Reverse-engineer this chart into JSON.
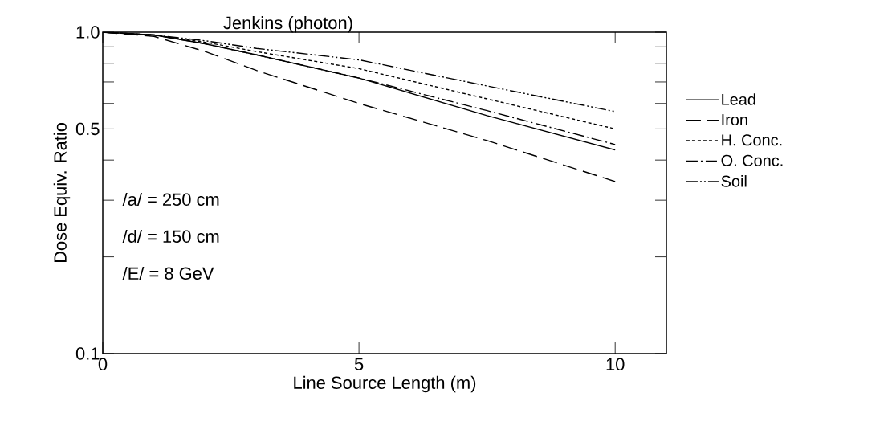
{
  "chart_data": {
    "type": "line",
    "title": "Jenkins  (photon)",
    "xlabel": "Line Source Length (m)",
    "ylabel": "Dose Equiv. Ratio",
    "log": "y",
    "legend": "right",
    "grid": false,
    "marker": "none",
    "x": [
      0,
      1,
      2,
      3,
      5,
      7.5,
      10
    ],
    "xlim": [
      0,
      11
    ],
    "xticks": [
      0,
      5,
      10
    ],
    "ylim": [
      0.1,
      1.0
    ],
    "yticks": [
      0.1,
      {
        "value": 0.2,
        "label": null
      },
      {
        "value": 0.3,
        "label": null
      },
      {
        "value": 0.4,
        "label": null
      },
      0.5,
      {
        "value": 0.6,
        "label": null
      },
      {
        "value": 0.7,
        "label": null
      },
      {
        "value": 0.8,
        "label": null
      },
      {
        "value": 0.9,
        "label": null
      },
      {
        "value": 1,
        "label": "1.0"
      }
    ],
    "series": [
      {
        "name": "Lead",
        "color": "#000000",
        "line_style": "solid",
        "values": [
          1.0,
          0.98,
          0.92,
          0.85,
          0.72,
          0.55,
          0.43
        ]
      },
      {
        "name": "Iron",
        "color": "#000000",
        "line_style": "longdashed",
        "values": [
          1.0,
          0.97,
          0.87,
          0.76,
          0.6,
          0.46,
          0.343
        ]
      },
      {
        "name": "H. Conc.",
        "color": "#000000",
        "line_style": "dashed",
        "values": [
          1.0,
          0.98,
          0.93,
          0.87,
          0.77,
          0.62,
          0.5
        ]
      },
      {
        "name": "O. Conc.",
        "color": "#000000",
        "line_style": "dashdot",
        "values": [
          1.0,
          0.98,
          0.92,
          0.85,
          0.72,
          0.57,
          0.447
        ]
      },
      {
        "name": "Soil",
        "color": "#000000",
        "line_style": "dashdotdot",
        "values": [
          1.0,
          0.98,
          0.94,
          0.89,
          0.82,
          0.68,
          0.566
        ]
      }
    ],
    "annotations": [
      "/a/ = 250 cm",
      "/d/ = 150 cm",
      "/E/ =    8 GeV"
    ]
  }
}
